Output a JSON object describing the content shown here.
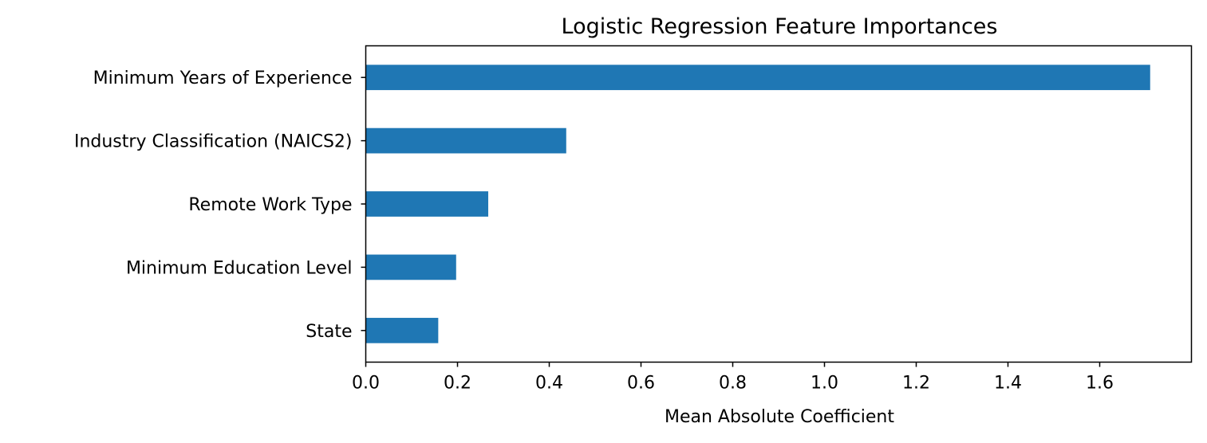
{
  "chart_data": {
    "type": "bar",
    "orientation": "horizontal",
    "title": "Logistic Regression Feature Importances",
    "xlabel": "Mean Absolute Coefficient",
    "ylabel": "",
    "categories": [
      "Minimum Years of Experience",
      "Industry Classification (NAICS2)",
      "Remote Work Type",
      "Minimum Education Level",
      "State"
    ],
    "values": [
      1.71,
      0.437,
      0.267,
      0.197,
      0.158
    ],
    "xlim": [
      0,
      1.8
    ],
    "xticks": [
      0.0,
      0.2,
      0.4,
      0.6,
      0.8,
      1.0,
      1.2,
      1.4,
      1.6
    ],
    "xtick_labels": [
      "0.0",
      "0.2",
      "0.4",
      "0.6",
      "0.8",
      "1.0",
      "1.2",
      "1.4",
      "1.6"
    ],
    "bar_color": "#1f77b4",
    "grid": false,
    "legend": false
  }
}
